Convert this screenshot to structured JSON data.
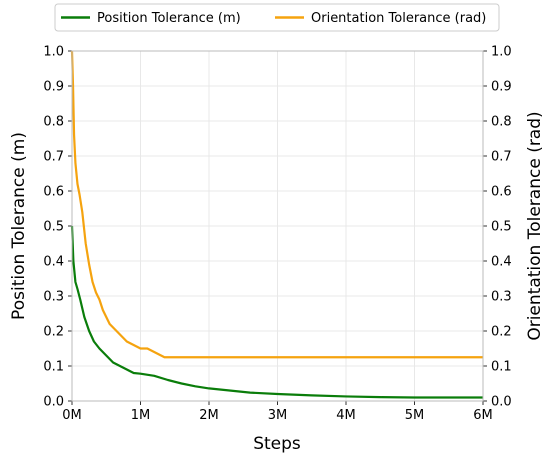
{
  "chart_data": {
    "type": "line",
    "xlabel": "Steps",
    "ylabel_left": "Position Tolerance (m)",
    "ylabel_right": "Orientation Tolerance (rad)",
    "xlim": [
      0,
      6000000
    ],
    "ylim": [
      0.0,
      1.0
    ],
    "x_ticks": [
      0,
      1000000,
      2000000,
      3000000,
      4000000,
      5000000,
      6000000
    ],
    "x_tick_labels": [
      "0M",
      "1M",
      "2M",
      "3M",
      "4M",
      "5M",
      "6M"
    ],
    "y_ticks": [
      0.0,
      0.1,
      0.2,
      0.3,
      0.4,
      0.5,
      0.6,
      0.7,
      0.8,
      0.9,
      1.0
    ],
    "y_tick_labels": [
      "0.0",
      "0.1",
      "0.2",
      "0.3",
      "0.4",
      "0.5",
      "0.6",
      "0.7",
      "0.8",
      "0.9",
      "1.0"
    ],
    "grid": true,
    "legend_position": "top",
    "series": [
      {
        "name": "Position Tolerance (m)",
        "color": "#0a7d0a",
        "axis": "left",
        "x": [
          0,
          20000,
          50000,
          80000,
          120000,
          180000,
          250000,
          320000,
          400000,
          500000,
          600000,
          700000,
          800000,
          900000,
          1000000,
          1200000,
          1400000,
          1600000,
          1800000,
          2000000,
          2300000,
          2600000,
          3000000,
          3500000,
          4000000,
          4500000,
          5000000,
          5500000,
          6000000
        ],
        "y": [
          0.5,
          0.4,
          0.34,
          0.32,
          0.29,
          0.24,
          0.2,
          0.17,
          0.15,
          0.13,
          0.11,
          0.1,
          0.09,
          0.08,
          0.078,
          0.072,
          0.06,
          0.05,
          0.042,
          0.036,
          0.03,
          0.024,
          0.02,
          0.016,
          0.013,
          0.011,
          0.01,
          0.01,
          0.01
        ]
      },
      {
        "name": "Orientation Tolerance (rad)",
        "color": "#f5a30f",
        "axis": "right",
        "x": [
          0,
          15000,
          30000,
          50000,
          80000,
          110000,
          150000,
          200000,
          250000,
          300000,
          350000,
          400000,
          450000,
          500000,
          550000,
          600000,
          650000,
          700000,
          750000,
          800000,
          850000,
          900000,
          950000,
          1000000,
          1100000,
          1200000,
          1300000,
          1350000,
          2000000,
          3000000,
          4000000,
          5000000,
          6000000
        ],
        "y": [
          1.0,
          0.9,
          0.76,
          0.68,
          0.62,
          0.59,
          0.54,
          0.45,
          0.39,
          0.34,
          0.31,
          0.29,
          0.26,
          0.24,
          0.22,
          0.21,
          0.2,
          0.19,
          0.18,
          0.17,
          0.165,
          0.16,
          0.155,
          0.15,
          0.15,
          0.14,
          0.13,
          0.125,
          0.125,
          0.125,
          0.125,
          0.125,
          0.125
        ]
      }
    ]
  }
}
